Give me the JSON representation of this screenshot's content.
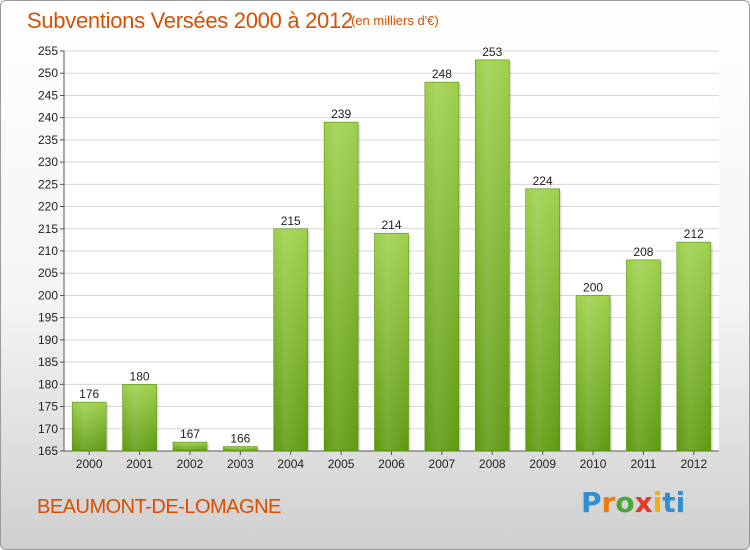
{
  "title": "Subventions Versées 2000 à 2012",
  "subtitle": "(en milliers d'€)",
  "commune": "BEAUMONT-DE-LOMAGNE",
  "logo": {
    "text": "Proxiti",
    "letters": [
      "P",
      "r",
      "o",
      "x",
      "i",
      "ti"
    ]
  },
  "colors": {
    "title": "#d94f00",
    "bar_top": "#9ed04d",
    "bar_bottom": "#5f9a12"
  },
  "chart_data": {
    "type": "bar",
    "categories": [
      "2000",
      "2001",
      "2002",
      "2003",
      "2004",
      "2005",
      "2006",
      "2007",
      "2008",
      "2009",
      "2010",
      "2011",
      "2012"
    ],
    "values": [
      176,
      180,
      167,
      166,
      215,
      239,
      214,
      248,
      253,
      224,
      200,
      208,
      212
    ],
    "ylim": [
      165,
      255
    ],
    "yticks": [
      165,
      170,
      175,
      180,
      185,
      190,
      195,
      200,
      205,
      210,
      215,
      220,
      225,
      230,
      235,
      240,
      245,
      250,
      255
    ],
    "grid": true,
    "legend": "none"
  }
}
